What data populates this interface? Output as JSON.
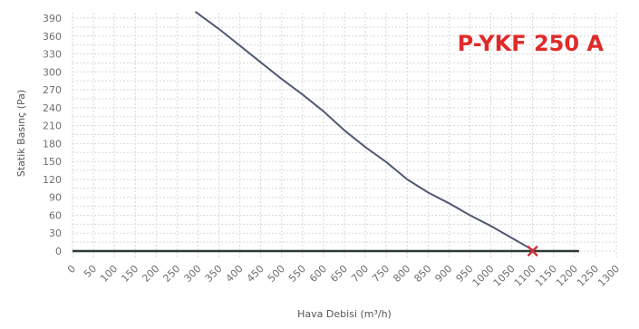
{
  "chart_data": {
    "type": "line",
    "title": "P-YKF 250 A",
    "title_color": "#e02a2a",
    "xlabel": "Hava Debisi (m³/h)",
    "ylabel": "Statik Basınç (Pa)",
    "xlim": [
      0,
      1300
    ],
    "ylim": [
      0,
      390
    ],
    "x_ticks": [
      0,
      50,
      100,
      150,
      200,
      250,
      300,
      350,
      400,
      450,
      500,
      550,
      600,
      650,
      700,
      750,
      800,
      850,
      900,
      950,
      1000,
      1050,
      1100,
      1150,
      1200,
      1250,
      1300
    ],
    "y_ticks": [
      0,
      30,
      60,
      90,
      120,
      150,
      180,
      210,
      240,
      270,
      300,
      330,
      360,
      390
    ],
    "grid": true,
    "series": [
      {
        "x": [
          295,
          350,
          400,
          450,
          500,
          550,
          600,
          650,
          700,
          750,
          800,
          850,
          900,
          950,
          1000,
          1050,
          1100
        ],
        "y": [
          400,
          372,
          344,
          316,
          288,
          262,
          234,
          202,
          174,
          149,
          120,
          98,
          80,
          60,
          42,
          22,
          2
        ],
        "color": "#505a72"
      }
    ],
    "baseline": {
      "x_from": 0,
      "x_to": 1200,
      "y": 0,
      "color": "#2b3a35"
    },
    "operating_point": {
      "x": 1100,
      "y": 0,
      "marker": "x",
      "color": "#c8323c"
    },
    "colors": {
      "grid": "#d7d7d7",
      "ticks": "#6e6e6e"
    }
  }
}
